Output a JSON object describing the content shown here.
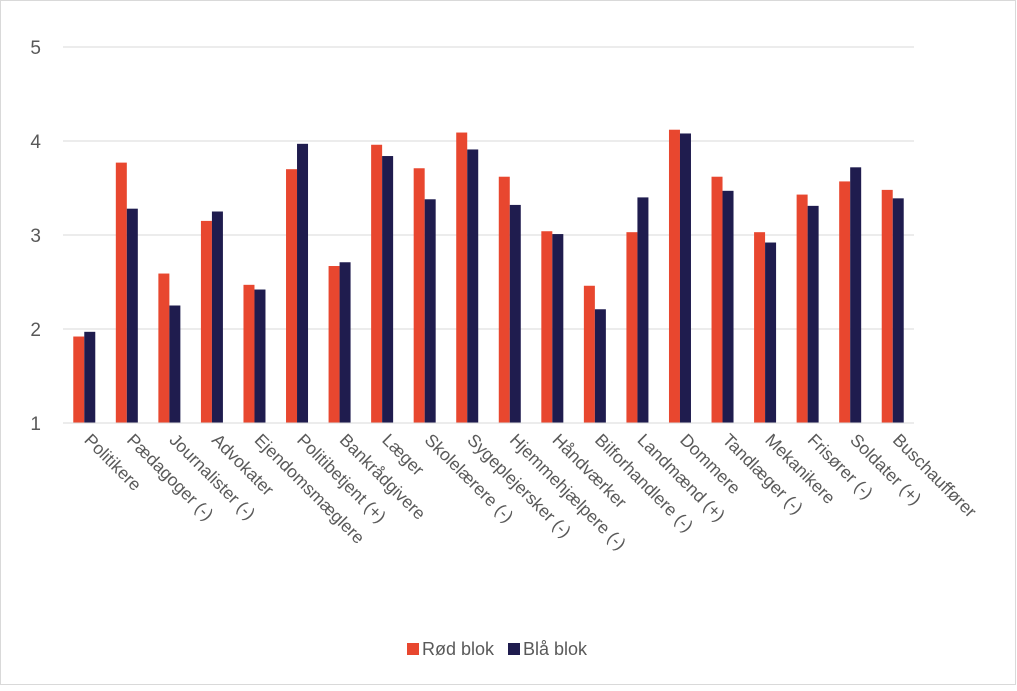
{
  "chart_data": {
    "type": "bar",
    "title": "",
    "xlabel": "",
    "ylabel": "",
    "ylim": [
      1,
      5
    ],
    "yticks": [
      1,
      2,
      3,
      4,
      5
    ],
    "grid": true,
    "legend_position": "bottom",
    "categories": [
      "Politikere",
      "Pædagoger (-)",
      "Journalister (-)",
      "Advokater",
      "Ejendomsmæglere",
      "Politibetjent (+)",
      "Bankrådgivere",
      "Læger",
      "Skolelærere (-)",
      "Sygeplejersker (-)",
      "Hjemmehjælpere (-)",
      "Håndværker",
      "Bilforhandlere (-)",
      "Landmænd (+)",
      "Dommere",
      "Tandlæger (-)",
      "Mekanikere",
      "Frisører (-)",
      "Soldater (+)",
      "Buschauffører"
    ],
    "series": [
      {
        "name": "Rød blok",
        "color": "#e8472f",
        "values": [
          1.92,
          3.77,
          2.59,
          3.15,
          2.47,
          3.7,
          2.67,
          3.96,
          3.71,
          4.09,
          3.62,
          3.04,
          2.46,
          3.03,
          4.12,
          3.62,
          3.03,
          3.43,
          3.57,
          3.48
        ]
      },
      {
        "name": "Blå blok",
        "color": "#1f1c4e",
        "values": [
          1.97,
          3.28,
          2.25,
          3.25,
          2.42,
          3.97,
          2.71,
          3.84,
          3.38,
          3.91,
          3.32,
          3.01,
          2.21,
          3.4,
          4.08,
          3.47,
          2.92,
          3.31,
          3.72,
          3.39
        ]
      }
    ]
  }
}
